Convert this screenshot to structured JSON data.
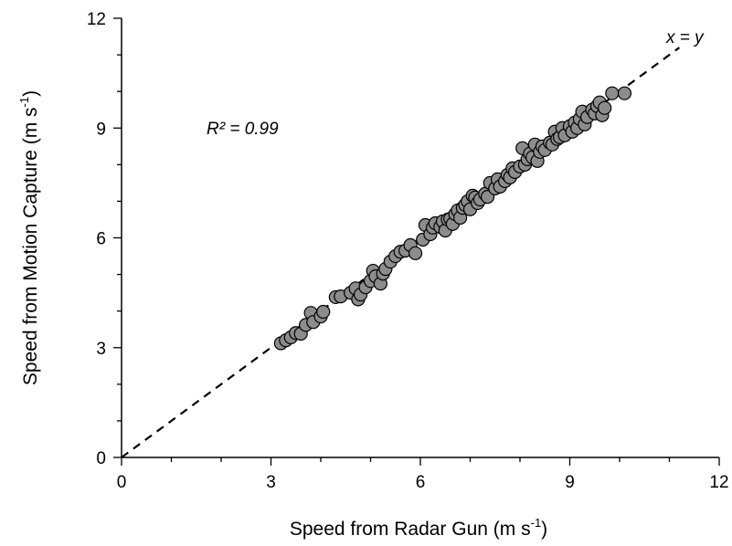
{
  "chart_data": {
    "type": "scatter",
    "title": "",
    "xlabel": "Speed from Radar Gun (m s",
    "xlabel_superscript": "-1",
    "xlabel_suffix": ")",
    "ylabel": "Speed from Motion Capture (m s",
    "ylabel_superscript": "-1",
    "ylabel_suffix": ")",
    "xlim": [
      0,
      12
    ],
    "ylim": [
      0,
      12
    ],
    "xticks": [
      "0",
      "3",
      "6",
      "9",
      "12"
    ],
    "yticks": [
      "0",
      "3",
      "6",
      "9",
      "12"
    ],
    "grid": false,
    "legend": "none",
    "annotations": {
      "r2": "R² = 0.99",
      "identity": "x = y"
    },
    "identity_line": {
      "x": [
        0,
        11.2
      ],
      "y": [
        0,
        11.2
      ]
    },
    "marker_fill": "#8c8c8c",
    "marker_edge": "#000000",
    "points": [
      [
        3.2,
        3.12
      ],
      [
        3.3,
        3.2
      ],
      [
        3.4,
        3.28
      ],
      [
        3.5,
        3.4
      ],
      [
        3.6,
        3.38
      ],
      [
        3.7,
        3.62
      ],
      [
        3.8,
        3.95
      ],
      [
        3.85,
        3.7
      ],
      [
        4.0,
        3.85
      ],
      [
        4.05,
        3.98
      ],
      [
        4.3,
        4.38
      ],
      [
        4.4,
        4.4
      ],
      [
        4.6,
        4.5
      ],
      [
        4.7,
        4.62
      ],
      [
        4.75,
        4.32
      ],
      [
        4.8,
        4.45
      ],
      [
        4.9,
        4.65
      ],
      [
        5.0,
        4.82
      ],
      [
        5.05,
        5.1
      ],
      [
        5.1,
        4.95
      ],
      [
        5.2,
        4.75
      ],
      [
        5.25,
        5.02
      ],
      [
        5.3,
        5.15
      ],
      [
        5.4,
        5.35
      ],
      [
        5.5,
        5.5
      ],
      [
        5.6,
        5.62
      ],
      [
        5.7,
        5.65
      ],
      [
        5.8,
        5.8
      ],
      [
        5.9,
        5.58
      ],
      [
        6.05,
        5.95
      ],
      [
        6.1,
        6.35
      ],
      [
        6.2,
        6.1
      ],
      [
        6.25,
        6.28
      ],
      [
        6.3,
        6.4
      ],
      [
        6.4,
        6.3
      ],
      [
        6.45,
        6.45
      ],
      [
        6.5,
        6.2
      ],
      [
        6.55,
        6.5
      ],
      [
        6.6,
        6.52
      ],
      [
        6.65,
        6.38
      ],
      [
        6.7,
        6.65
      ],
      [
        6.75,
        6.75
      ],
      [
        6.8,
        6.55
      ],
      [
        6.85,
        6.82
      ],
      [
        6.9,
        6.9
      ],
      [
        6.95,
        7.0
      ],
      [
        7.0,
        6.78
      ],
      [
        7.05,
        7.15
      ],
      [
        7.1,
        7.1
      ],
      [
        7.15,
        6.95
      ],
      [
        7.2,
        7.05
      ],
      [
        7.3,
        7.2
      ],
      [
        7.35,
        7.12
      ],
      [
        7.4,
        7.5
      ],
      [
        7.5,
        7.35
      ],
      [
        7.55,
        7.6
      ],
      [
        7.6,
        7.4
      ],
      [
        7.7,
        7.55
      ],
      [
        7.75,
        7.72
      ],
      [
        7.8,
        7.65
      ],
      [
        7.85,
        7.9
      ],
      [
        7.9,
        7.8
      ],
      [
        8.0,
        7.95
      ],
      [
        8.05,
        8.45
      ],
      [
        8.1,
        8.0
      ],
      [
        8.15,
        8.15
      ],
      [
        8.2,
        8.3
      ],
      [
        8.25,
        8.2
      ],
      [
        8.3,
        8.55
      ],
      [
        8.35,
        8.1
      ],
      [
        8.4,
        8.35
      ],
      [
        8.45,
        8.5
      ],
      [
        8.5,
        8.4
      ],
      [
        8.6,
        8.6
      ],
      [
        8.65,
        8.55
      ],
      [
        8.7,
        8.9
      ],
      [
        8.75,
        8.7
      ],
      [
        8.8,
        8.75
      ],
      [
        8.85,
        9.0
      ],
      [
        8.9,
        8.8
      ],
      [
        9.0,
        9.05
      ],
      [
        9.05,
        8.9
      ],
      [
        9.1,
        9.15
      ],
      [
        9.15,
        9.0
      ],
      [
        9.2,
        9.25
      ],
      [
        9.25,
        9.45
      ],
      [
        9.3,
        9.1
      ],
      [
        9.35,
        9.3
      ],
      [
        9.45,
        9.5
      ],
      [
        9.5,
        9.4
      ],
      [
        9.55,
        9.6
      ],
      [
        9.6,
        9.7
      ],
      [
        9.65,
        9.35
      ],
      [
        9.7,
        9.55
      ],
      [
        9.85,
        9.95
      ],
      [
        10.1,
        9.95
      ]
    ]
  }
}
